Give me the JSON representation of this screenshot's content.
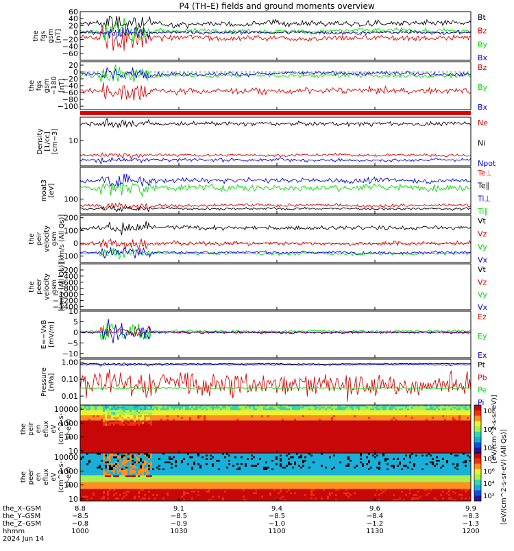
{
  "title": "P4 (TH–E) fields and ground moments overview",
  "colors": {
    "black": "#000000",
    "red": "#e00000",
    "green": "#00dd00",
    "blue": "#0000e0"
  },
  "chart_data": [
    {
      "type": "line",
      "ylabel": [
        "the",
        "fgs",
        "gsm",
        "[nT]"
      ],
      "ylim": [
        -80,
        60
      ],
      "yticks": [
        -60,
        -40,
        -20,
        0,
        20,
        40,
        60
      ],
      "series": [
        {
          "name": "Bt",
          "color": "black",
          "base": 25,
          "noise": 8,
          "burst": 25
        },
        {
          "name": "Bz",
          "color": "red",
          "base": -15,
          "noise": 8,
          "burst": 35
        },
        {
          "name": "By",
          "color": "green",
          "base": 5,
          "noise": 6,
          "burst": 25
        },
        {
          "name": "Bx",
          "color": "blue",
          "base": 0,
          "noise": 5,
          "burst": 15
        }
      ]
    },
    {
      "type": "line",
      "ylabel": [
        "the",
        "fgs",
        "gsm",
        "−180",
        "[nT]"
      ],
      "ylim": [
        -110,
        30
      ],
      "yticks": [
        -100,
        -80,
        -60,
        -40,
        -20,
        0,
        20
      ],
      "series": [
        {
          "name": "Bz",
          "color": "red",
          "base": -55,
          "noise": 8,
          "burst": 25
        },
        {
          "name": "By",
          "color": "green",
          "base": -10,
          "noise": 6,
          "burst": 20
        },
        {
          "name": "Bx",
          "color": "blue",
          "base": -5,
          "noise": 5,
          "burst": 15
        }
      ]
    },
    {
      "type": "line",
      "ylabel": [
        "Density",
        "[1/cc]",
        "[cm−3]"
      ],
      "ylim": [
        3,
        30
      ],
      "yscale": "log",
      "yticks": [
        10
      ],
      "series": [
        {
          "name": "Ne",
          "color": "red",
          "base": 5,
          "noise": 0.3,
          "burst": 0.5
        },
        {
          "name": "Ni",
          "color": "black",
          "base": 22,
          "noise": 2,
          "burst": 4
        },
        {
          "name": "Npot",
          "color": "blue",
          "base": 4,
          "noise": 0.3,
          "burst": 0.4
        }
      ]
    },
    {
      "type": "line",
      "ylabel": [
        "moat3",
        "[eV]"
      ],
      "ylim": [
        60,
        300
      ],
      "yscale": "log",
      "yticks": [
        100
      ],
      "series": [
        {
          "name": "Te⊥",
          "color": "red",
          "base": 80,
          "noise": 4,
          "burst": 8
        },
        {
          "name": "Te∥",
          "color": "black",
          "base": 72,
          "noise": 3,
          "burst": 6
        },
        {
          "name": "Ti⊥",
          "color": "blue",
          "base": 190,
          "noise": 15,
          "burst": 40
        },
        {
          "name": "Ti∥",
          "color": "green",
          "base": 150,
          "noise": 15,
          "burst": 40
        }
      ]
    },
    {
      "type": "line",
      "ylabel": [
        "the",
        "peir",
        "velocity",
        "gsm",
        "[km/s (All Qs)]"
      ],
      "ylim": [
        -150,
        220
      ],
      "yticks": [
        -100,
        0,
        100,
        200
      ],
      "series": [
        {
          "name": "Vt",
          "color": "black",
          "base": 120,
          "noise": 15,
          "burst": 40
        },
        {
          "name": "Vz",
          "color": "red",
          "base": 0,
          "noise": 15,
          "burst": 40
        },
        {
          "name": "Vy",
          "color": "green",
          "base": -80,
          "noise": 10,
          "burst": 40
        },
        {
          "name": "Vx",
          "color": "blue",
          "base": -70,
          "noise": 10,
          "burst": 40
        }
      ]
    },
    {
      "type": "line",
      "ylabel": [
        "the",
        "peer",
        "velocity",
        "gsm",
        "[km/s (All Qs)]"
      ],
      "ylim": [
        -1500,
        0
      ],
      "yticks": [
        -1400,
        -1200,
        -1000,
        -800,
        -600,
        -400,
        -200
      ],
      "series": [
        {
          "name": "Vt",
          "color": "black",
          "empty": true
        },
        {
          "name": "Vz",
          "color": "red",
          "empty": true
        },
        {
          "name": "Vy",
          "color": "green",
          "empty": true
        },
        {
          "name": "Vx",
          "color": "blue",
          "empty": true
        }
      ]
    },
    {
      "type": "line",
      "ylabel": [
        "E=−VxB",
        "[mV/m]"
      ],
      "ylim": [
        -12,
        10
      ],
      "yticks": [
        -10,
        -5,
        0,
        5,
        10
      ],
      "series": [
        {
          "name": "Ez",
          "color": "red",
          "base": 0,
          "noise": 0.5,
          "burst": 3
        },
        {
          "name": "Ey",
          "color": "green",
          "base": 0.5,
          "noise": 0.5,
          "burst": 4
        },
        {
          "name": "Ex",
          "color": "blue",
          "base": 0,
          "noise": 0.5,
          "burst": 4
        }
      ]
    },
    {
      "type": "line",
      "ylabel": [
        "Pressure",
        "[nPa]"
      ],
      "ylim": [
        0.003,
        1.5
      ],
      "yscale": "log",
      "yticks": [
        0.01,
        0.1,
        1
      ],
      "yticklabels": [
        "0.01",
        "0.10",
        "1.00"
      ],
      "series": [
        {
          "name": "Pt",
          "color": "black",
          "base": 0.8,
          "noise": 0.05,
          "burst": 0.1
        },
        {
          "name": "Pb",
          "color": "red",
          "base": 0.05,
          "noise": 0.03,
          "burst": 0.1
        },
        {
          "name": "Pe",
          "color": "green",
          "base": 0.03,
          "noise": 0.002,
          "burst": 0.005
        },
        {
          "name": "Pi",
          "color": "blue",
          "base": 0.7,
          "noise": 0.05,
          "burst": 0.1
        }
      ]
    },
    {
      "type": "heatmap",
      "ylabel": [
        "the",
        "peir",
        "en",
        "eflux",
        "eV",
        "(cm^2-s-",
        "sr-eV)"
      ],
      "ylim": [
        7,
        20000
      ],
      "yscale": "log",
      "yticks": [
        10,
        100,
        1000,
        10000
      ],
      "colorbar_label": "[eV/(cm^2-s-sr-eV)]",
      "colorbar_ticks": [
        "10⁴",
        "10⁶",
        "10⁸"
      ]
    },
    {
      "type": "heatmap",
      "ylabel": [
        "the",
        "peer",
        "en",
        "eflux",
        "eV",
        "(cm^2-s-",
        "sr-eV)"
      ],
      "ylim": [
        7,
        20000
      ],
      "yscale": "log",
      "yticks": [
        10,
        100,
        1000,
        10000
      ],
      "colorbar_label": "[eV/(cm^2-s-sr-eV) (All Qs)]",
      "colorbar_ticks": [
        "10²",
        "10⁴",
        "10⁶",
        "10⁸"
      ]
    }
  ],
  "axis_rows": [
    {
      "label": "the_X–GSM",
      "values": [
        "8.8",
        "9.1",
        "9.4",
        "9.6",
        "9.9"
      ]
    },
    {
      "label": "the_Y–GSM",
      "values": [
        "−8.5",
        "−8.5",
        "−8.5",
        "−8.4",
        "−8.3"
      ]
    },
    {
      "label": "the_Z–GSM",
      "values": [
        "−0.8",
        "−0.9",
        "−1.0",
        "−1.2",
        "−1.3"
      ]
    },
    {
      "label": "hhmm",
      "values": [
        "1000",
        "1030",
        "1100",
        "1130",
        "1200"
      ]
    }
  ],
  "date": "2024 Jun 14"
}
